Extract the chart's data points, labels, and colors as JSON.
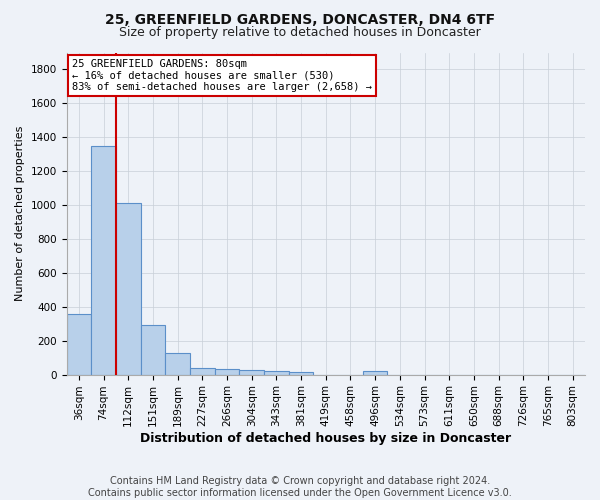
{
  "title1": "25, GREENFIELD GARDENS, DONCASTER, DN4 6TF",
  "title2": "Size of property relative to detached houses in Doncaster",
  "xlabel": "Distribution of detached houses by size in Doncaster",
  "ylabel": "Number of detached properties",
  "bar_labels": [
    "36sqm",
    "74sqm",
    "112sqm",
    "151sqm",
    "189sqm",
    "227sqm",
    "266sqm",
    "304sqm",
    "343sqm",
    "381sqm",
    "419sqm",
    "458sqm",
    "496sqm",
    "534sqm",
    "573sqm",
    "611sqm",
    "650sqm",
    "688sqm",
    "726sqm",
    "765sqm",
    "803sqm"
  ],
  "bar_values": [
    355,
    1350,
    1010,
    290,
    125,
    40,
    35,
    30,
    20,
    18,
    0,
    0,
    22,
    0,
    0,
    0,
    0,
    0,
    0,
    0,
    0
  ],
  "bar_color": "#b8d0ea",
  "bar_edge_color": "#5b8fc9",
  "subject_line_color": "#cc0000",
  "annotation_text": "25 GREENFIELD GARDENS: 80sqm\n← 16% of detached houses are smaller (530)\n83% of semi-detached houses are larger (2,658) →",
  "annotation_box_color": "#ffffff",
  "annotation_box_edge_color": "#cc0000",
  "ylim": [
    0,
    1900
  ],
  "yticks": [
    0,
    200,
    400,
    600,
    800,
    1000,
    1200,
    1400,
    1600,
    1800
  ],
  "footer_text": "Contains HM Land Registry data © Crown copyright and database right 2024.\nContains public sector information licensed under the Open Government Licence v3.0.",
  "background_color": "#eef2f8",
  "grid_color": "#c8cfd8",
  "title1_fontsize": 10,
  "title2_fontsize": 9,
  "ylabel_fontsize": 8,
  "xlabel_fontsize": 9,
  "tick_fontsize": 7.5,
  "annotation_fontsize": 7.5,
  "footer_fontsize": 7
}
